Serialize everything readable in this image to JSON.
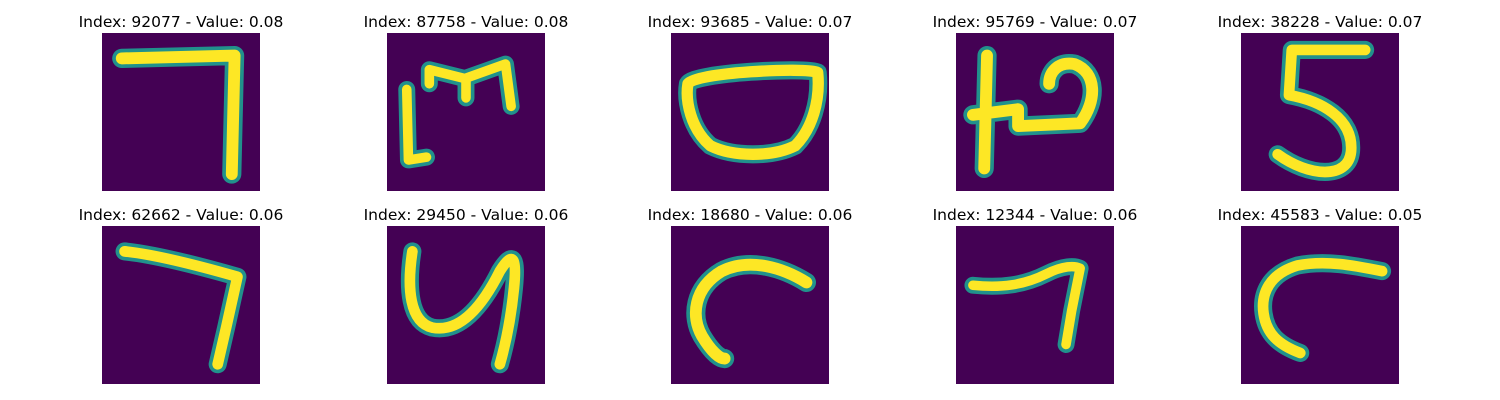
{
  "panels": [
    {
      "title": "Index: 92077 - Value: 0.08",
      "glyph": "seven-square-glyph"
    },
    {
      "title": "Index: 87758 - Value: 0.08",
      "glyph": "m-like-glyph"
    },
    {
      "title": "Index: 93685 - Value: 0.07",
      "glyph": "bowl-glyph"
    },
    {
      "title": "Index: 95769 - Value: 0.07",
      "glyph": "h-like-glyph"
    },
    {
      "title": "Index: 38228 - Value: 0.07",
      "glyph": "five-glyph"
    },
    {
      "title": "Index: 62662 - Value: 0.06",
      "glyph": "seven-curved-glyph"
    },
    {
      "title": "Index: 29450 - Value: 0.06",
      "glyph": "y-like-glyph"
    },
    {
      "title": "Index: 18680 - Value: 0.06",
      "glyph": "hook-glyph"
    },
    {
      "title": "Index: 12344 - Value: 0.06",
      "glyph": "seven-wave-glyph"
    },
    {
      "title": "Index: 45583 - Value: 0.05",
      "glyph": "c-like-glyph"
    }
  ],
  "colors": {
    "background": "#440154",
    "stroke_outer": "#21918c",
    "stroke_inner": "#fde725"
  }
}
